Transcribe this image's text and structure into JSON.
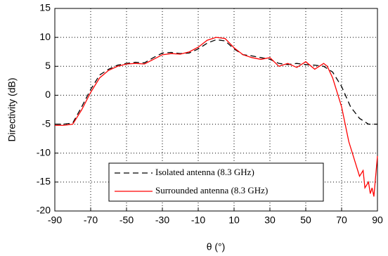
{
  "chart_data": {
    "type": "line",
    "xlabel": "θ (°)",
    "ylabel": "Directivity (dB)",
    "xlim": [
      -90,
      90
    ],
    "ylim": [
      -20,
      15
    ],
    "xticks": [
      -90,
      -70,
      -50,
      -30,
      -10,
      10,
      30,
      50,
      70,
      90
    ],
    "yticks": [
      -20,
      -15,
      -10,
      -5,
      0,
      5,
      10,
      15
    ],
    "grid": true,
    "legend": "lower center",
    "series": [
      {
        "name": "Isolated antenna (8.3 GHz)",
        "color": "#000000",
        "dash": true,
        "x": [
          -90,
          -85,
          -80,
          -75,
          -70,
          -65,
          -60,
          -55,
          -50,
          -45,
          -40,
          -35,
          -30,
          -25,
          -20,
          -15,
          -10,
          -5,
          0,
          5,
          10,
          15,
          20,
          25,
          30,
          35,
          40,
          45,
          50,
          55,
          60,
          65,
          70,
          75,
          80,
          85,
          90
        ],
        "values": [
          -5,
          -5,
          -4.8,
          -2,
          1,
          3.5,
          4.5,
          5.2,
          5.5,
          5.7,
          5.6,
          6.5,
          7.3,
          7.4,
          7.2,
          7.3,
          8,
          9,
          9.6,
          9.4,
          8,
          7,
          6.8,
          6.5,
          6.2,
          5.5,
          5.3,
          5.5,
          5.3,
          5.2,
          5,
          4,
          1.5,
          -2,
          -4,
          -5,
          -5
        ]
      },
      {
        "name": "Surrounded antenna (8.3 GHz)",
        "color": "#ff0000",
        "dash": false,
        "x": [
          -90,
          -85,
          -80,
          -75,
          -70,
          -65,
          -60,
          -55,
          -50,
          -45,
          -40,
          -35,
          -30,
          -25,
          -20,
          -15,
          -10,
          -5,
          0,
          5,
          10,
          15,
          20,
          25,
          30,
          35,
          40,
          45,
          50,
          55,
          60,
          62,
          65,
          68,
          70,
          72,
          74,
          76,
          78,
          80,
          82,
          83,
          85,
          86,
          87,
          88,
          89,
          90
        ],
        "values": [
          -5.2,
          -5.2,
          -5,
          -2.5,
          0.5,
          3,
          4.3,
          5,
          5.4,
          5.5,
          5.4,
          6.2,
          7,
          7.2,
          7.1,
          7.5,
          8.3,
          9.5,
          10,
          9.8,
          8.2,
          7,
          6.5,
          6.2,
          6.5,
          5,
          5.5,
          4.8,
          5.8,
          4.5,
          5.5,
          5,
          3,
          0,
          -2,
          -5,
          -8,
          -10,
          -12,
          -14,
          -13,
          -16,
          -15,
          -17,
          -16,
          -17.5,
          -14,
          -10.5
        ]
      }
    ]
  }
}
